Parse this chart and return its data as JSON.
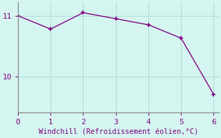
{
  "x": [
    0,
    1,
    2,
    3,
    4,
    5,
    6
  ],
  "y": [
    11.0,
    10.78,
    11.05,
    10.95,
    10.85,
    10.63,
    9.7
  ],
  "line_color": "#800080",
  "marker": "+",
  "marker_size": 5,
  "marker_linewidth": 1.2,
  "bg_color": "#d4f5f0",
  "xlabel": "Windchill (Refroidissement éolien,°C)",
  "xlabel_color": "#800080",
  "xlabel_fontsize": 7.5,
  "ylabel_ticks": [
    10,
    11
  ],
  "xticks": [
    0,
    1,
    2,
    3,
    4,
    5,
    6
  ],
  "xlim": [
    0,
    6.15
  ],
  "ylim": [
    9.4,
    11.22
  ],
  "grid_color": "#a8ddd5",
  "tick_color": "#800080",
  "tick_fontsize": 8,
  "spine_color": "#808080",
  "line_width": 1.0
}
